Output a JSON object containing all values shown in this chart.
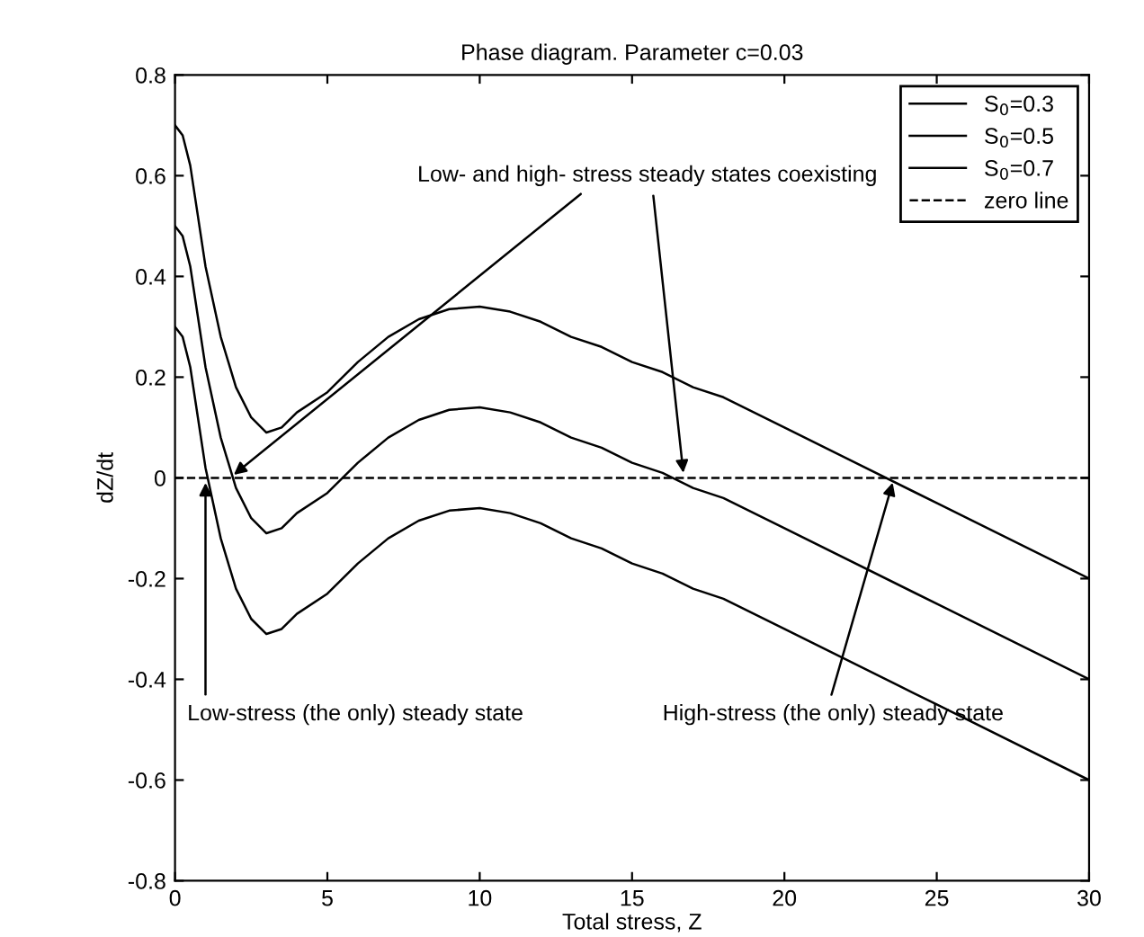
{
  "chart_data": {
    "type": "line",
    "title": "Phase diagram. Parameter c=0.03",
    "xlabel": "Total stress, Z",
    "ylabel": "dZ/dt",
    "xlim": [
      0,
      30
    ],
    "ylim": [
      -0.8,
      0.8
    ],
    "xticks": [
      0,
      5,
      10,
      15,
      20,
      25,
      30
    ],
    "yticks": [
      {
        "value": -0.8,
        "label": "-0.8"
      },
      {
        "value": -0.6,
        "label": "-0.6"
      },
      {
        "value": -0.4,
        "label": "-0.4"
      },
      {
        "value": -0.2,
        "label": "-0.2"
      },
      0,
      0.2,
      0.4,
      0.6,
      0.8
    ],
    "grid": false,
    "legend": "top right",
    "series": [
      {
        "name": "S$_{0}$=0.3",
        "color": "#000000",
        "line_style": "solid",
        "x": [
          0,
          0.25,
          0.5,
          0.75,
          1,
          1.5,
          2,
          2.5,
          3,
          3.5,
          4,
          5,
          5.5,
          6,
          7,
          8,
          9,
          10,
          11,
          12,
          13,
          14,
          15,
          16,
          17,
          18,
          20,
          25,
          30
        ],
        "values": [
          0.3,
          0.28,
          0.22,
          0.12,
          0.02,
          -0.12,
          -0.22,
          -0.28,
          -0.31,
          -0.3,
          -0.27,
          -0.23,
          -0.2,
          -0.17,
          -0.12,
          -0.085,
          -0.065,
          -0.06,
          -0.07,
          -0.09,
          -0.12,
          -0.14,
          -0.17,
          -0.19,
          -0.22,
          -0.24,
          -0.3,
          -0.45,
          -0.6
        ]
      },
      {
        "name": "S$_{0}$=0.5",
        "color": "#000000",
        "line_style": "solid",
        "x": [
          0,
          0.25,
          0.5,
          0.75,
          1,
          1.5,
          2,
          2.5,
          3,
          3.5,
          4,
          5,
          5.5,
          6,
          7,
          8,
          9,
          10,
          11,
          12,
          13,
          14,
          15,
          16,
          17,
          18,
          20,
          25,
          30
        ],
        "values": [
          0.5,
          0.48,
          0.42,
          0.32,
          0.22,
          0.08,
          -0.02,
          -0.08,
          -0.11,
          -0.1,
          -0.07,
          -0.03,
          0,
          0.03,
          0.08,
          0.115,
          0.135,
          0.14,
          0.13,
          0.11,
          0.08,
          0.06,
          0.03,
          0.01,
          -0.02,
          -0.04,
          -0.1,
          -0.25,
          -0.4
        ]
      },
      {
        "name": "S$_{0}$=0.7",
        "color": "#000000",
        "line_style": "solid",
        "x": [
          0,
          0.25,
          0.5,
          0.75,
          1,
          1.5,
          2,
          2.5,
          3,
          3.5,
          4,
          5,
          5.5,
          6,
          7,
          8,
          9,
          10,
          11,
          12,
          13,
          14,
          15,
          16,
          17,
          18,
          20,
          25,
          30
        ],
        "values": [
          0.7,
          0.68,
          0.62,
          0.52,
          0.42,
          0.28,
          0.18,
          0.12,
          0.09,
          0.1,
          0.13,
          0.17,
          0.2,
          0.23,
          0.28,
          0.315,
          0.335,
          0.34,
          0.33,
          0.31,
          0.28,
          0.26,
          0.23,
          0.21,
          0.18,
          0.16,
          0.1,
          -0.05,
          -0.2
        ]
      },
      {
        "name": "zero line",
        "color": "#000000",
        "line_style": "dashed",
        "x": [
          0,
          30
        ],
        "values": [
          0,
          0
        ]
      }
    ],
    "annotations": [
      {
        "text": "Low- and high- stress steady states coexisting",
        "x": 1.8,
        "y": 0
      },
      {
        "text": "Low-stress (the only) steady state",
        "x": 1,
        "y": 0
      },
      {
        "text": "High-stress (the only) steady state",
        "x": 23.6,
        "y": 0
      }
    ]
  }
}
